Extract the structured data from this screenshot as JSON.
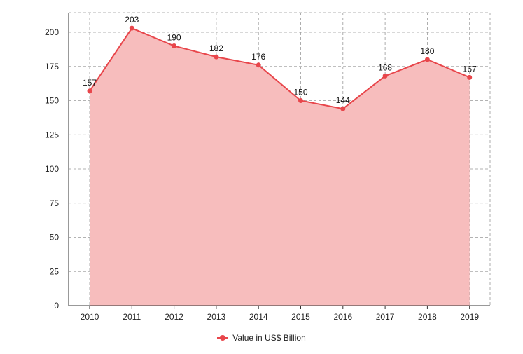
{
  "chart_data": {
    "type": "area",
    "title": "",
    "xlabel": "",
    "ylabel": "",
    "categories": [
      "2010",
      "2011",
      "2012",
      "2013",
      "2014",
      "2015",
      "2016",
      "2017",
      "2018",
      "2019"
    ],
    "series": [
      {
        "name": "Value in US$ Billion",
        "values": [
          157,
          203,
          190,
          182,
          176,
          150,
          144,
          168,
          180,
          167
        ]
      }
    ],
    "ylim": [
      0,
      200
    ],
    "yticks": [
      0,
      25,
      50,
      75,
      100,
      125,
      150,
      175,
      200
    ],
    "grid": true,
    "data_labels": true,
    "legend_position": "bottom",
    "colors": {
      "line": "#e8464b",
      "fill": "#f7bdbd",
      "grid": "#999999",
      "axis": "#333333"
    }
  }
}
